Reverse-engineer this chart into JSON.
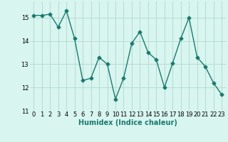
{
  "x": [
    0,
    1,
    2,
    3,
    4,
    5,
    6,
    7,
    8,
    9,
    10,
    11,
    12,
    13,
    14,
    15,
    16,
    17,
    18,
    19,
    20,
    21,
    22,
    23
  ],
  "y": [
    15.1,
    15.1,
    15.15,
    14.6,
    15.3,
    14.1,
    12.3,
    12.4,
    13.3,
    13.0,
    11.5,
    12.4,
    13.9,
    14.4,
    13.5,
    13.2,
    12.0,
    13.05,
    14.1,
    15.0,
    13.3,
    12.9,
    12.2,
    11.7
  ],
  "line_color": "#1a7a6e",
  "marker": "D",
  "marker_size": 2.5,
  "bg_color": "#d8f5f0",
  "grid_color": "#b0d8cc",
  "xlabel": "Humidex (Indice chaleur)",
  "xlabel_fontsize": 7,
  "tick_fontsize": 6,
  "ylim": [
    11.0,
    15.7
  ],
  "yticks": [
    11,
    12,
    13,
    14,
    15
  ],
  "xticks": [
    0,
    1,
    2,
    3,
    4,
    5,
    6,
    7,
    8,
    9,
    10,
    11,
    12,
    13,
    14,
    15,
    16,
    17,
    18,
    19,
    20,
    21,
    22,
    23
  ]
}
